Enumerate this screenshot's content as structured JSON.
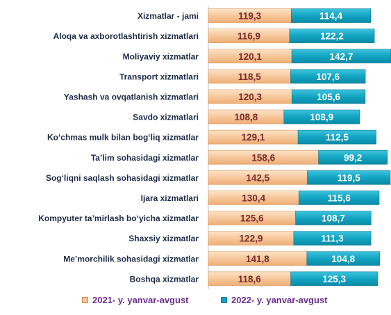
{
  "chart_data": {
    "type": "bar",
    "orientation": "horizontal",
    "stacked": true,
    "categories": [
      "Xizmatlar - jami",
      "Aloqa va axborotlashtirish xizmatlari",
      "Moliyaviy xizmatlar",
      "Transport xizmatlari",
      "Yashash va ovqatlanish xizmatlari",
      "Savdo xizmatlari",
      "Ko‘chmas mulk bilan bog‘liq xizmatlar",
      "Ta’lim sohasidagi xizmatlar",
      "Sog‘liqni saqlash sohasidagi xizmatlar",
      "Ijara xizmatlari",
      "Kompyuter ta’mirlash bo‘yicha xizmatlar",
      "Shaxsiy xizmatlar",
      "Me’morchilik sohasidagi xizmatlar",
      "Boshqa xizmatlar"
    ],
    "series": [
      {
        "name": "2021- y. yanvar-avgust",
        "color": "#f6c79b",
        "values": [
          119.3,
          116.9,
          120.1,
          118.5,
          120.3,
          108.8,
          129.1,
          158.6,
          142.5,
          130.4,
          125.6,
          122.9,
          141.8,
          118.6
        ],
        "labels": [
          "119,3",
          "116,9",
          "120,1",
          "118,5",
          "120,3",
          "108,8",
          "129,1",
          "158,6",
          "142,5",
          "130,4",
          "125,6",
          "122,9",
          "141,8",
          "118,6"
        ]
      },
      {
        "name": "2022- y. yanvar-avgust",
        "color": "#12a4c2",
        "values": [
          114.4,
          122.2,
          142.7,
          107.6,
          105.6,
          108.9,
          112.5,
          99.2,
          119.5,
          115.6,
          108.7,
          111.3,
          104.8,
          125.3
        ],
        "labels": [
          "114,4",
          "122,2",
          "142,7",
          "107,6",
          "105,6",
          "108,9",
          "112,5",
          "99,2",
          "119,5",
          "115,6",
          "108,7",
          "111,3",
          "104,8",
          "125,3"
        ]
      }
    ],
    "legend_position": "bottom",
    "grid": false
  }
}
